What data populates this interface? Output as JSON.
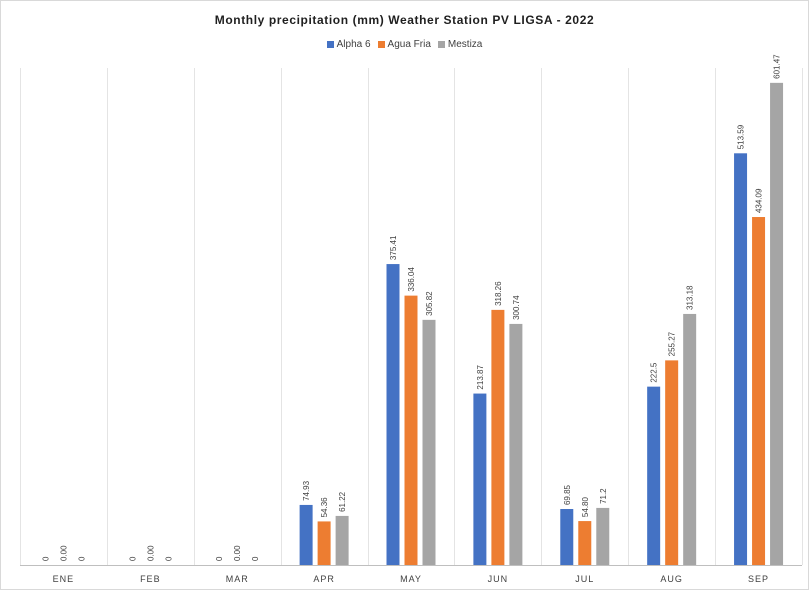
{
  "chart_data": {
    "type": "bar",
    "title": "Monthly precipitation (mm) Weather Station PV LIGSA - 2022",
    "xlabel": "",
    "ylabel": "",
    "ylim": [
      0,
      620
    ],
    "grid": "vertical",
    "legend_position": "top",
    "categories": [
      "ENE",
      "FEB",
      "MAR",
      "APR",
      "MAY",
      "JUN",
      "JUL",
      "AUG",
      "SEP"
    ],
    "series": [
      {
        "name": "Alpha 6",
        "color": "#4472c4",
        "values": [
          0,
          0,
          0,
          74.93,
          375.41,
          213.87,
          69.85,
          222.5,
          513.59
        ],
        "labels": [
          "0",
          "0",
          "0",
          "74.93",
          "375.41",
          "213.87",
          "69.85",
          "222.5",
          "513.59"
        ]
      },
      {
        "name": "Agua Fria",
        "color": "#ed7d31",
        "values": [
          0,
          0,
          0,
          54.36,
          336.04,
          318.26,
          54.8,
          255.27,
          434.09
        ],
        "labels": [
          "0.00",
          "0.00",
          "0.00",
          "54.36",
          "336.04",
          "318.26",
          "54.80",
          "255.27",
          "434.09"
        ]
      },
      {
        "name": "Mestiza",
        "color": "#a5a5a5",
        "values": [
          0,
          0,
          0,
          61.22,
          305.82,
          300.74,
          71.2,
          313.18,
          601.47
        ],
        "labels": [
          "0",
          "0",
          "0",
          "61.22",
          "305.82",
          "300.74",
          "71.2",
          "313.18",
          "601.47"
        ]
      }
    ]
  }
}
